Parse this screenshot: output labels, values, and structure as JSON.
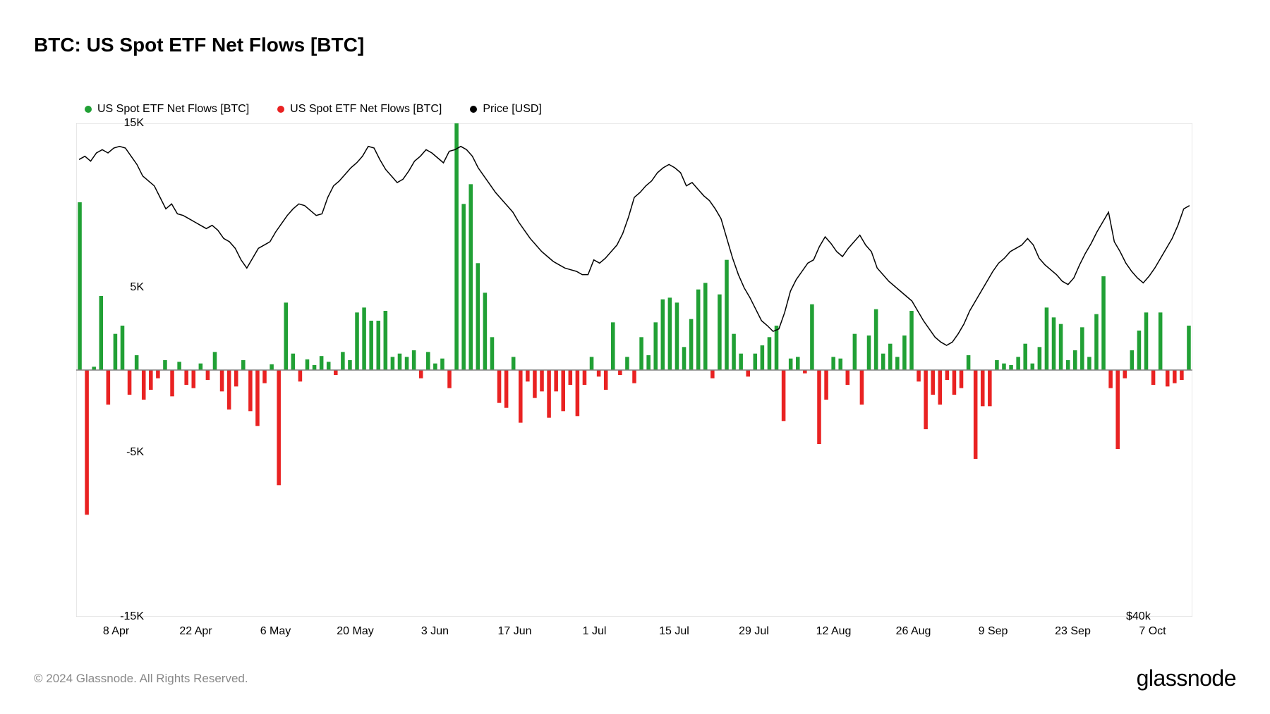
{
  "title": "BTC: US Spot ETF Net Flows [BTC]",
  "legend": [
    {
      "label": "US Spot ETF Net Flows [BTC]",
      "color": "#21a035"
    },
    {
      "label": "US Spot ETF Net Flows [BTC]",
      "color": "#e92222"
    },
    {
      "label": "Price [USD]",
      "color": "#000000"
    }
  ],
  "footer_left": "© 2024 Glassnode. All Rights Reserved.",
  "footer_right": "glassnode",
  "chart": {
    "type": "bar+line",
    "background_color": "#ffffff",
    "axis_color": "#808080",
    "border_color": "#d0d0d0",
    "y_left": {
      "min": -15000,
      "max": 15000,
      "ticks": [
        -15000,
        -5000,
        5000,
        15000
      ],
      "labels": [
        "-15K",
        "-5K",
        "5K",
        "15K"
      ]
    },
    "y_right": {
      "label_at_bottom": "$40k"
    },
    "x_labels": [
      "8 Apr",
      "22 Apr",
      "6 May",
      "20 May",
      "3 Jun",
      "17 Jun",
      "1 Jul",
      "15 Jul",
      "29 Jul",
      "12 Aug",
      "26 Aug",
      "9 Sep",
      "23 Sep",
      "7 Oct"
    ],
    "bar_color_pos": "#21a035",
    "bar_color_neg": "#e92222",
    "line_color": "#000000",
    "line_width": 1.5,
    "bars": [
      10200,
      -8800,
      200,
      4500,
      -2100,
      2200,
      2700,
      -1500,
      900,
      -1800,
      -1200,
      -500,
      600,
      -1600,
      500,
      -900,
      -1100,
      400,
      -600,
      1100,
      -1300,
      -2400,
      -1000,
      600,
      -2500,
      -3400,
      -800,
      350,
      -7000,
      4100,
      1000,
      -700,
      650,
      300,
      850,
      500,
      -300,
      1100,
      600,
      3500,
      3800,
      3000,
      3000,
      3600,
      800,
      1000,
      800,
      1200,
      -500,
      1100,
      400,
      700,
      -1100,
      16100,
      10100,
      11300,
      6500,
      4700,
      2000,
      -2000,
      -2300,
      800,
      -3200,
      -700,
      -1700,
      -1300,
      -2900,
      -1300,
      -2500,
      -900,
      -2800,
      -900,
      800,
      -400,
      -1200,
      2900,
      -300,
      800,
      -800,
      2000,
      900,
      2900,
      4300,
      4400,
      4100,
      1400,
      3100,
      4900,
      5300,
      -500,
      4600,
      6700,
      2200,
      1000,
      -400,
      1000,
      1500,
      2000,
      2700,
      -3100,
      700,
      800,
      -200,
      4000,
      -4500,
      -1800,
      800,
      700,
      -900,
      2200,
      -2100,
      2100,
      3700,
      1000,
      1600,
      800,
      2100,
      3600,
      -700,
      -3600,
      -1500,
      -2100,
      -600,
      -1500,
      -1100,
      900,
      -5400,
      -2200,
      -2200,
      600,
      400,
      300,
      800,
      1600,
      400,
      1400,
      3800,
      3200,
      2800,
      600,
      1200,
      2600,
      800,
      3400,
      5700,
      -1100,
      -4800,
      -500,
      1200,
      2400,
      3500,
      -900,
      3500,
      -1000,
      -800,
      -600,
      2700
    ],
    "price": [
      12800,
      13000,
      12700,
      13200,
      13400,
      13200,
      13500,
      13600,
      13500,
      13000,
      12500,
      11800,
      11500,
      11200,
      10500,
      9800,
      10100,
      9500,
      9400,
      9200,
      9000,
      8800,
      8600,
      8800,
      8500,
      8000,
      7800,
      7400,
      6700,
      6200,
      6800,
      7400,
      7600,
      7800,
      8400,
      8900,
      9400,
      9800,
      10100,
      10000,
      9700,
      9400,
      9500,
      10500,
      11200,
      11500,
      11900,
      12300,
      12600,
      13000,
      13600,
      13500,
      12800,
      12200,
      11800,
      11400,
      11600,
      12100,
      12700,
      13000,
      13400,
      13200,
      12900,
      12600,
      13300,
      13400,
      13600,
      13400,
      13000,
      12300,
      11800,
      11300,
      10800,
      10400,
      10000,
      9600,
      9000,
      8500,
      8000,
      7600,
      7200,
      6900,
      6600,
      6400,
      6200,
      6100,
      6000,
      5800,
      5800,
      6700,
      6500,
      6800,
      7200,
      7600,
      8300,
      9300,
      10500,
      10800,
      11200,
      11500,
      12000,
      12300,
      12500,
      12300,
      12000,
      11200,
      11400,
      11000,
      10600,
      10300,
      9800,
      9200,
      8000,
      6800,
      5800,
      5000,
      4400,
      3700,
      3000,
      2700,
      2350,
      2500,
      3500,
      4800,
      5500,
      6000,
      6500,
      6700,
      7500,
      8100,
      7700,
      7200,
      6900,
      7400,
      7800,
      8200,
      7600,
      7200,
      6200,
      5800,
      5400,
      5100,
      4800,
      4500,
      4200,
      3600,
      3000,
      2500,
      2000,
      1700,
      1500,
      1700,
      2200,
      2800,
      3600,
      4200,
      4800,
      5400,
      6000,
      6500,
      6800,
      7200,
      7400,
      7600,
      8000,
      7600,
      6800,
      6400,
      6100,
      5800,
      5400,
      5200,
      5600,
      6400,
      7100,
      7700,
      8400,
      9000,
      9600,
      7800,
      7200,
      6500,
      6000,
      5600,
      5300,
      5700,
      6200,
      6800,
      7400,
      8000,
      8800,
      9800,
      10000
    ]
  }
}
